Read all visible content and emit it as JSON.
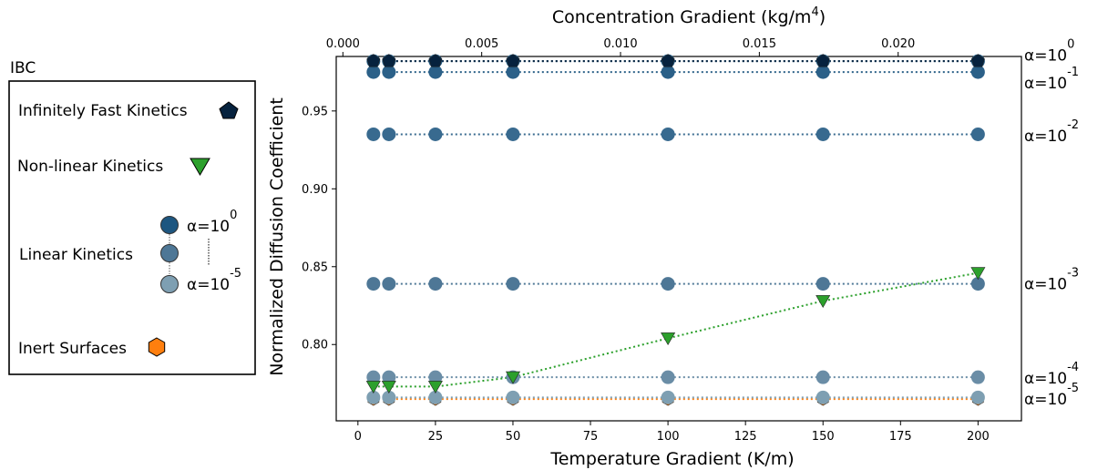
{
  "chart_data": {
    "type": "scatter",
    "title": "",
    "xlabel": "Temperature Gradient (K/m)",
    "ylabel": "Normalized Diffusion Coefficient",
    "x2label_text": "Concentration Gradient (kg/m",
    "x2label_sup": "4",
    "x2label_end": ")",
    "xlim": [
      -7,
      214
    ],
    "ylim": [
      0.751,
      0.985
    ],
    "x2lim": [
      -0.00024,
      0.02444
    ],
    "xticks": [
      0,
      25,
      50,
      75,
      100,
      125,
      150,
      175,
      200
    ],
    "xtick_labels": [
      "0",
      "25",
      "50",
      "75",
      "100",
      "125",
      "150",
      "175",
      "200"
    ],
    "yticks": [
      0.8,
      0.85,
      0.9,
      0.95
    ],
    "ytick_labels": [
      "0.80",
      "0.85",
      "0.90",
      "0.95"
    ],
    "x2ticks": [
      0.0,
      0.005,
      0.01,
      0.015,
      0.02
    ],
    "x2tick_labels": [
      "0.000",
      "0.005",
      "0.010",
      "0.015",
      "0.020"
    ],
    "grid": false,
    "legend_position": "left, outside plot",
    "x": [
      5,
      10,
      25,
      50,
      100,
      150,
      200
    ],
    "series": [
      {
        "key": "inert",
        "marker": "hexagon",
        "color": "#ff7f0e",
        "values": [
          0.765,
          0.765,
          0.765,
          0.765,
          0.765,
          0.765,
          0.765
        ]
      },
      {
        "key": "a-5",
        "marker": "circle",
        "color": "#7e9fb2",
        "values": [
          0.766,
          0.766,
          0.766,
          0.766,
          0.766,
          0.766,
          0.766
        ]
      },
      {
        "key": "a-4",
        "marker": "circle",
        "color": "#6a8da6",
        "values": [
          0.779,
          0.779,
          0.779,
          0.779,
          0.779,
          0.779,
          0.779
        ]
      },
      {
        "key": "a-3",
        "marker": "circle",
        "color": "#4e7796",
        "values": [
          0.839,
          0.839,
          0.839,
          0.839,
          0.839,
          0.839,
          0.839
        ]
      },
      {
        "key": "a-2",
        "marker": "circle",
        "color": "#386a8f",
        "values": [
          0.935,
          0.935,
          0.935,
          0.935,
          0.935,
          0.935,
          0.935
        ]
      },
      {
        "key": "a-1",
        "marker": "circle",
        "color": "#2b6088",
        "values": [
          0.975,
          0.975,
          0.975,
          0.975,
          0.975,
          0.975,
          0.975
        ]
      },
      {
        "key": "a0",
        "marker": "circle",
        "color": "#1d5680",
        "values": [
          0.982,
          0.982,
          0.982,
          0.982,
          0.982,
          0.982,
          0.982
        ]
      },
      {
        "key": "fast",
        "marker": "pentagon",
        "color": "#06223e",
        "values": [
          0.982,
          0.982,
          0.982,
          0.982,
          0.982,
          0.982,
          0.982
        ]
      },
      {
        "key": "nonlinear",
        "marker": "triangle-down",
        "color": "#2ca02c",
        "values": [
          0.773,
          0.773,
          0.773,
          0.779,
          0.804,
          0.828,
          0.846
        ]
      }
    ],
    "annotations": [
      {
        "base": "α=10",
        "exp": "0",
        "y": 0.986
      },
      {
        "base": "α=10",
        "exp": "-1",
        "y": 0.968
      },
      {
        "base": "α=10",
        "exp": "-2",
        "y": 0.934
      },
      {
        "base": "α=10",
        "exp": "-3",
        "y": 0.839
      },
      {
        "base": "α=10",
        "exp": "-4",
        "y": 0.7785
      },
      {
        "base": "α=10",
        "exp": "-5",
        "y": 0.765
      }
    ],
    "legend": {
      "title": "IBC",
      "fast_label": "Infinitely Fast Kinetics",
      "nonlinear_label": "Non-linear Kinetics",
      "linear_label": "Linear Kinetics",
      "linear_top_base": "α=10",
      "linear_top_exp": "0",
      "linear_bottom_base": "α=10",
      "linear_bottom_exp": "-5",
      "inert_label": "Inert Surfaces"
    }
  }
}
